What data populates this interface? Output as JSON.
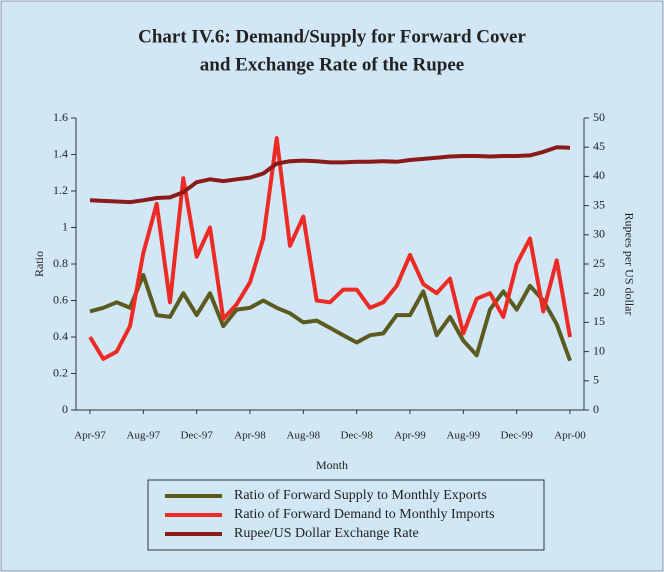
{
  "chart_data": {
    "type": "line",
    "title": [
      "Chart IV.6: Demand/Supply for Forward Cover",
      "and Exchange Rate of the Rupee"
    ],
    "x_label": "Month",
    "y_label": "Ratio",
    "y2_label": "Rupees per US dollar",
    "categories": [
      "Apr-97",
      null,
      null,
      null,
      "Aug-97",
      null,
      null,
      null,
      "Dec-97",
      null,
      null,
      null,
      "Apr-98",
      null,
      null,
      null,
      "Aug-98",
      null,
      null,
      null,
      "Dec-98",
      null,
      null,
      null,
      "Apr-99",
      null,
      null,
      null,
      "Aug-99",
      null,
      null,
      null,
      "Dec-99",
      null,
      null,
      null,
      "Apr-00"
    ],
    "series": [
      {
        "name": "Ratio of Forward Supply to Monthly Exports",
        "color": "#5b5b1f",
        "values": [
          0.54,
          0.56,
          0.59,
          0.56,
          0.74,
          0.52,
          0.51,
          0.64,
          0.52,
          0.64,
          0.46,
          0.55,
          0.56,
          0.6,
          0.56,
          0.53,
          0.48,
          0.49,
          0.45,
          0.41,
          0.37,
          0.41,
          0.42,
          0.52,
          0.52,
          0.65,
          0.41,
          0.51,
          0.38,
          0.3,
          0.55,
          0.65,
          0.55,
          0.68,
          0.6,
          0.47,
          0.27
        ]
      },
      {
        "name": "Ratio of Forward Demand to Monthly Imports",
        "color": "#ee2a24",
        "values": [
          0.4,
          0.28,
          0.32,
          0.46,
          0.86,
          1.13,
          0.59,
          1.27,
          0.84,
          1.0,
          0.5,
          0.58,
          0.7,
          0.94,
          1.49,
          0.9,
          1.06,
          0.6,
          0.59,
          0.66,
          0.66,
          0.56,
          0.59,
          0.68,
          0.85,
          0.69,
          0.64,
          0.72,
          0.42,
          0.61,
          0.64,
          0.51,
          0.8,
          0.94,
          0.54,
          0.82,
          0.4
        ]
      },
      {
        "name": "Rupee/US Dollar Exchange Rate",
        "color": "#8b1a1a",
        "axis": "y2",
        "values": [
          35.9,
          35.8,
          35.7,
          35.6,
          35.9,
          36.3,
          36.4,
          37.3,
          39.0,
          39.5,
          39.2,
          39.5,
          39.8,
          40.5,
          42.2,
          42.6,
          42.7,
          42.6,
          42.4,
          42.4,
          42.5,
          42.5,
          42.6,
          42.5,
          42.8,
          43.0,
          43.2,
          43.4,
          43.5,
          43.5,
          43.4,
          43.5,
          43.5,
          43.6,
          44.2,
          45.0,
          44.9
        ]
      }
    ],
    "ylim": [
      0,
      1.6
    ],
    "yticks": [
      0,
      0.2,
      0.4,
      0.6,
      0.8,
      1,
      1.2,
      1.4,
      1.6
    ],
    "y2lim": [
      0,
      50
    ],
    "y2ticks": [
      0,
      5,
      10,
      15,
      20,
      25,
      30,
      35,
      40,
      45,
      50
    ],
    "grid": false,
    "legend": "bottom"
  }
}
